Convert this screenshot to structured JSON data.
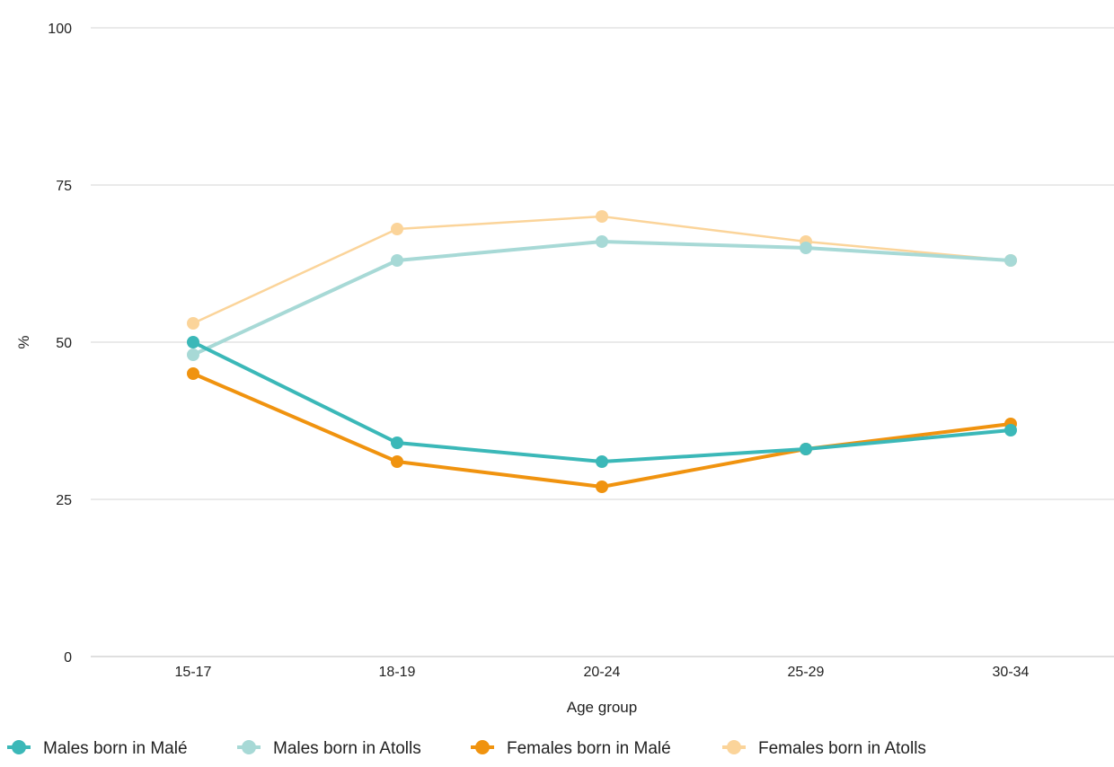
{
  "chart_data": {
    "type": "line",
    "title": "",
    "xlabel": "Age group",
    "ylabel": "%",
    "categories": [
      "15-17",
      "18-19",
      "20-24",
      "25-29",
      "30-34"
    ],
    "ylim": [
      0,
      100
    ],
    "yticks": [
      0,
      25,
      50,
      75,
      100
    ],
    "grid": true,
    "legend_position": "bottom-left",
    "series": [
      {
        "name": "Males born in Malé",
        "color": "#3bb8b8",
        "values": [
          50,
          34,
          31,
          33,
          36
        ]
      },
      {
        "name": "Males born in Atolls",
        "color": "#a7d9d6",
        "values": [
          48,
          63,
          66,
          65,
          63
        ]
      },
      {
        "name": "Females born in Malé",
        "color": "#f0930f",
        "values": [
          45,
          31,
          27,
          33,
          37
        ]
      },
      {
        "name": "Females born in Atolls",
        "color": "#fbd49a",
        "values": [
          53,
          68,
          70,
          66,
          63
        ]
      }
    ]
  }
}
